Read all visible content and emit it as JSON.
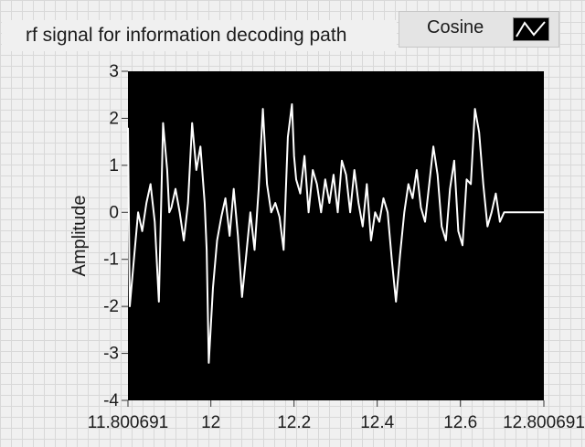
{
  "chart_data": {
    "type": "line",
    "title": "rf signal for information decoding path",
    "xlabel": "",
    "ylabel": "Amplitude",
    "xlim": [
      11.800691,
      12.800691
    ],
    "ylim": [
      -4,
      3
    ],
    "x_ticks": [
      "11.800691",
      "12",
      "12.2",
      "12.4",
      "12.6",
      "12.800691"
    ],
    "x_tick_values": [
      11.800691,
      12.0,
      12.2,
      12.4,
      12.6,
      12.800691
    ],
    "y_ticks": [
      "-4",
      "-3",
      "-2",
      "-1",
      "0",
      "1",
      "2",
      "3"
    ],
    "y_tick_values": [
      -4,
      -3,
      -2,
      -1,
      0,
      1,
      2,
      3
    ],
    "grid": false,
    "legend_position": "top-right",
    "background_color": "#000000",
    "line_color": "#ffffff",
    "series": [
      {
        "name": "Cosine",
        "x": [
          11.8007,
          11.805,
          11.815,
          11.825,
          11.835,
          11.845,
          11.855,
          11.865,
          11.875,
          11.885,
          11.895,
          11.9,
          11.905,
          11.915,
          11.925,
          11.935,
          11.945,
          11.955,
          11.965,
          11.975,
          11.985,
          11.99,
          11.995,
          12.005,
          12.015,
          12.025,
          12.035,
          12.045,
          12.055,
          12.065,
          12.075,
          12.085,
          12.095,
          12.105,
          12.115,
          12.125,
          12.135,
          12.145,
          12.155,
          12.165,
          12.175,
          12.185,
          12.195,
          12.2,
          12.205,
          12.215,
          12.225,
          12.235,
          12.245,
          12.255,
          12.265,
          12.275,
          12.285,
          12.295,
          12.305,
          12.315,
          12.325,
          12.335,
          12.345,
          12.355,
          12.365,
          12.375,
          12.385,
          12.395,
          12.405,
          12.415,
          12.425,
          12.435,
          12.445,
          12.455,
          12.465,
          12.475,
          12.485,
          12.495,
          12.505,
          12.515,
          12.525,
          12.535,
          12.545,
          12.555,
          12.565,
          12.575,
          12.585,
          12.595,
          12.605,
          12.615,
          12.625,
          12.635,
          12.645,
          12.655,
          12.665,
          12.675,
          12.685,
          12.695,
          12.705,
          12.715,
          12.725,
          12.735,
          12.745,
          12.755,
          12.765,
          12.775,
          12.785,
          12.795,
          12.8007
        ],
        "y": [
          1.8,
          -2.0,
          -1.0,
          0.0,
          -0.4,
          0.2,
          0.6,
          -0.2,
          -1.9,
          1.9,
          0.9,
          0.0,
          0.1,
          0.5,
          0.0,
          -0.6,
          0.2,
          1.9,
          0.9,
          1.4,
          0.2,
          -0.8,
          -3.2,
          -1.6,
          -0.6,
          -0.1,
          0.3,
          -0.5,
          0.5,
          -0.5,
          -1.8,
          -0.9,
          0.0,
          -0.8,
          0.5,
          2.2,
          0.6,
          0.0,
          0.2,
          -0.1,
          -0.8,
          1.6,
          2.3,
          1.2,
          0.7,
          0.4,
          1.2,
          0.0,
          0.9,
          0.6,
          0.0,
          0.7,
          0.2,
          0.8,
          0.0,
          1.1,
          0.8,
          0.0,
          0.9,
          0.2,
          -0.3,
          0.6,
          -0.6,
          0.0,
          -0.2,
          0.3,
          0.0,
          -1.0,
          -1.9,
          -0.9,
          0.0,
          0.6,
          0.3,
          0.9,
          0.1,
          -0.2,
          0.6,
          1.4,
          0.8,
          -0.3,
          -0.6,
          0.5,
          1.1,
          -0.4,
          -0.7,
          0.7,
          0.6,
          2.2,
          1.7,
          0.6,
          -0.3,
          0.0,
          0.4,
          -0.2,
          0.0,
          0.0,
          0.0,
          0.0,
          0.0,
          0.0,
          0.0,
          0.0,
          0.0,
          0.0,
          0.0
        ]
      }
    ]
  }
}
